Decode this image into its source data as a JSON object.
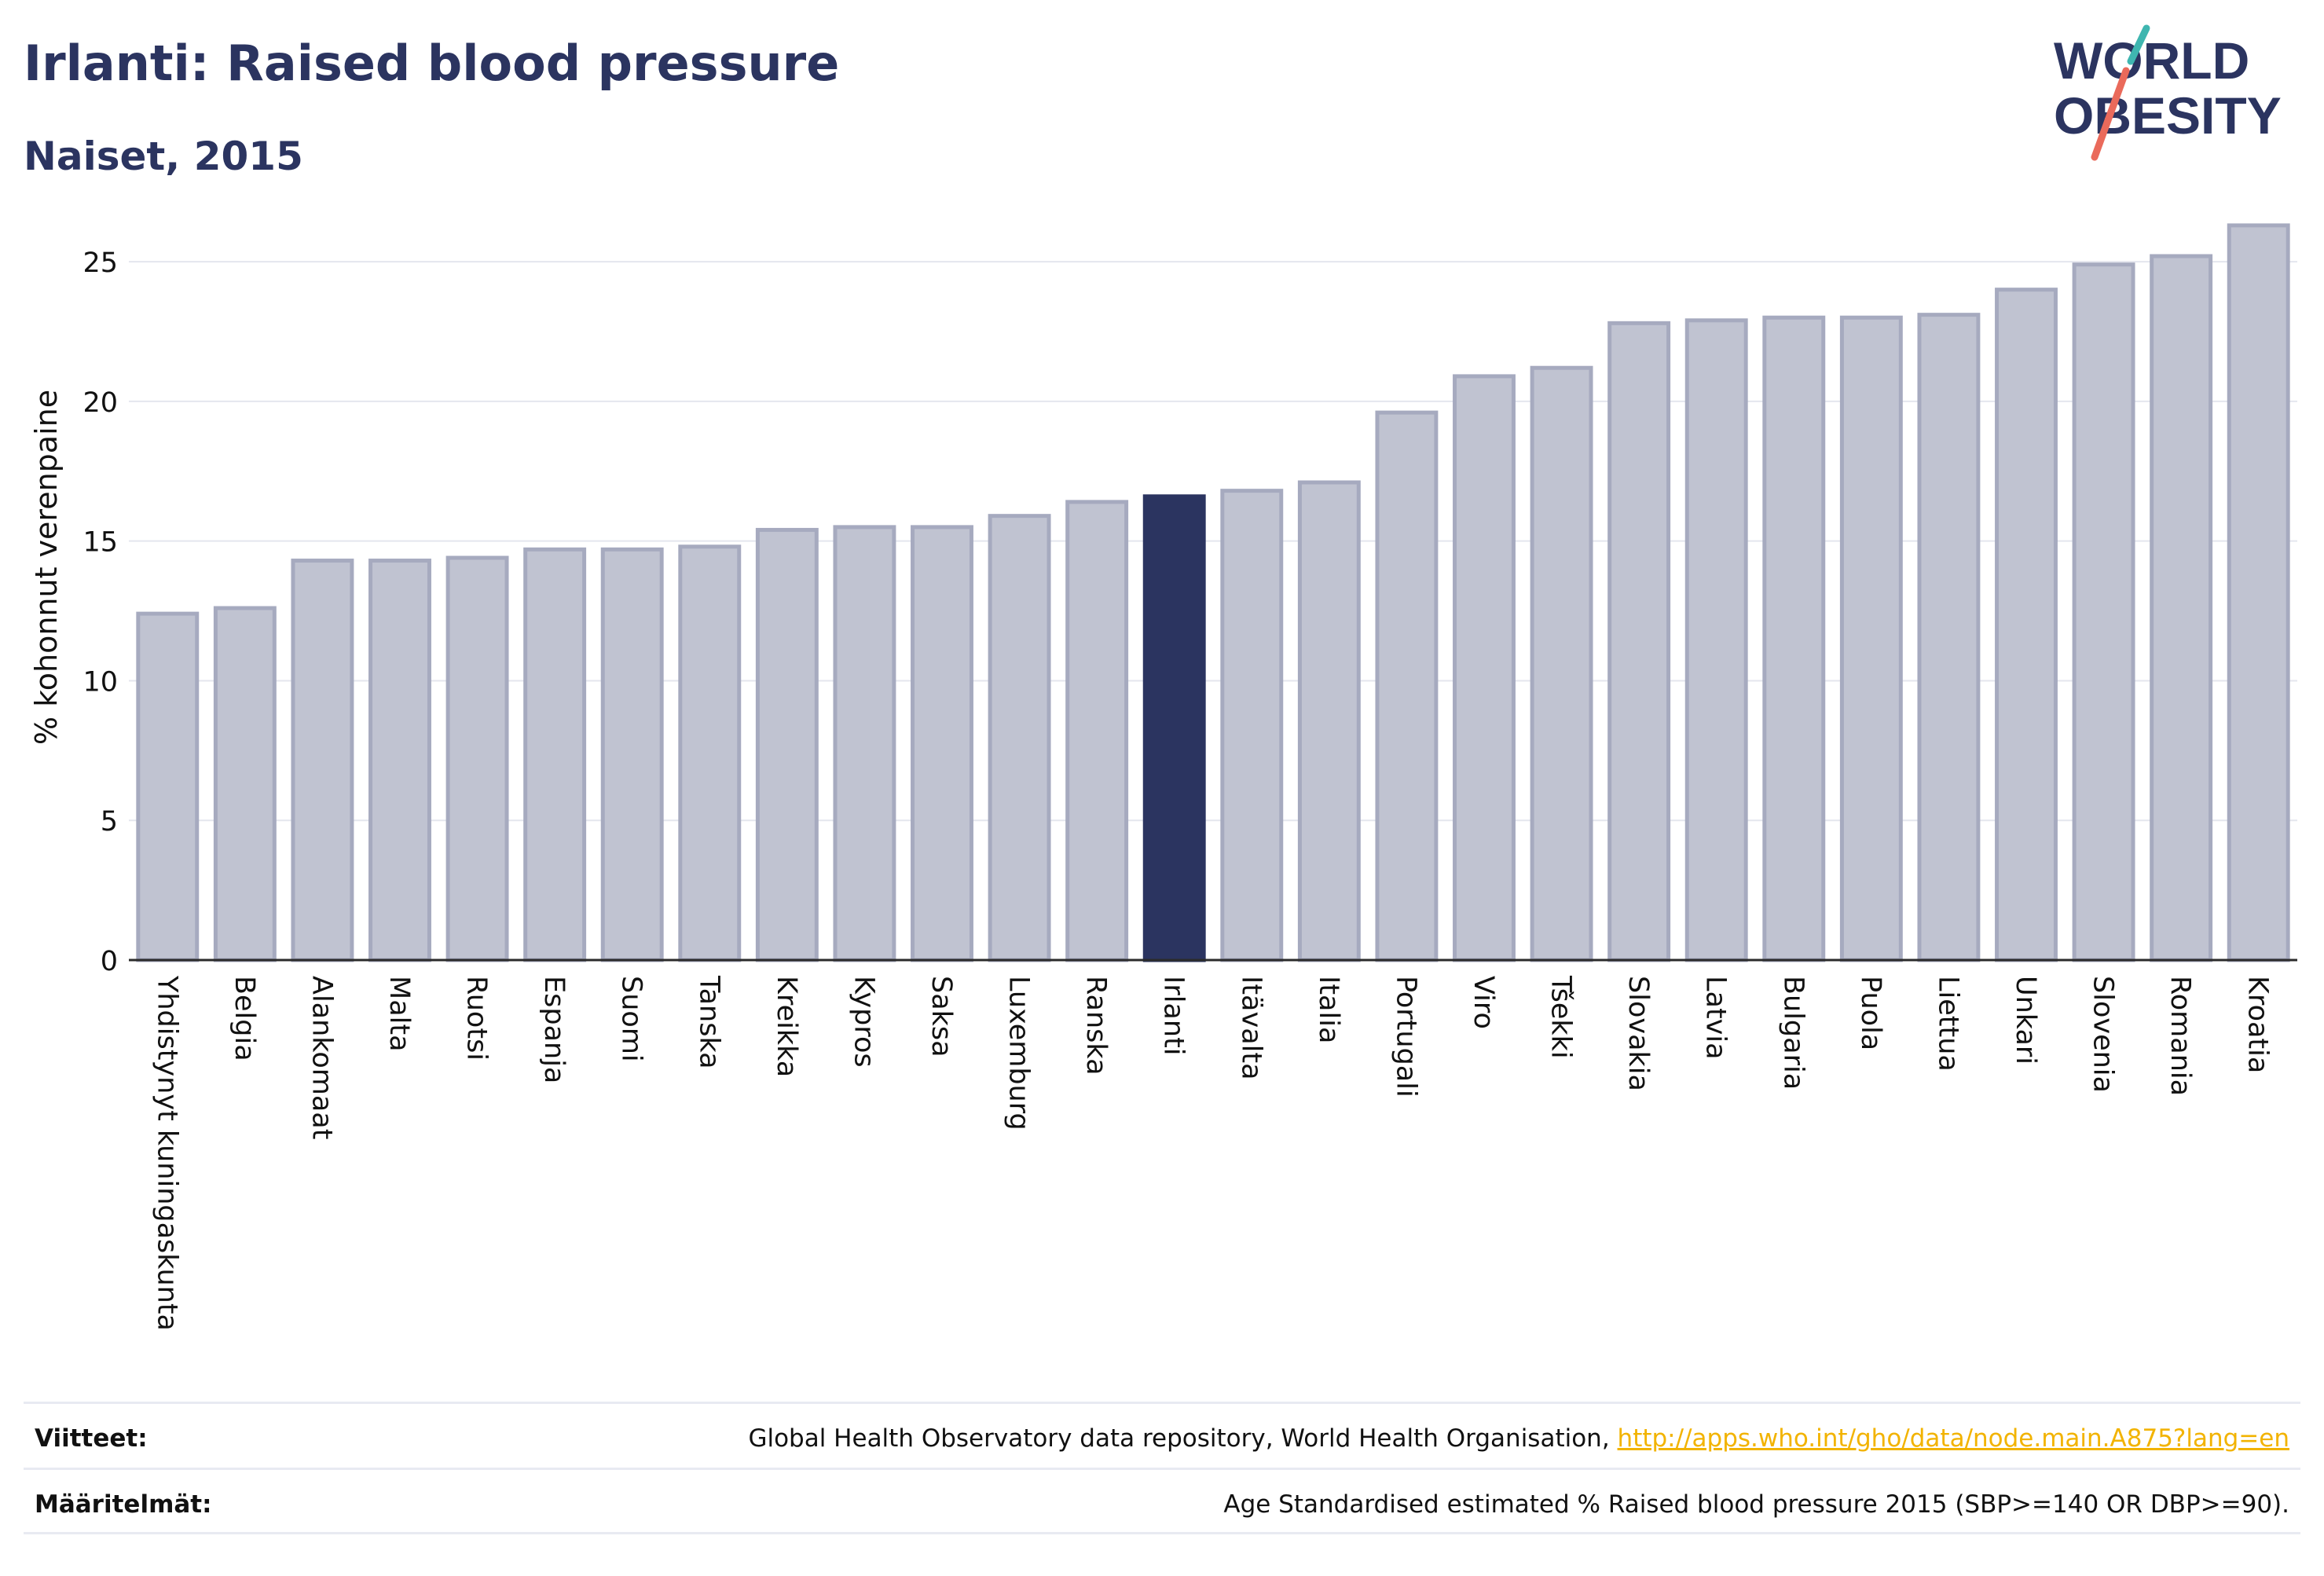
{
  "header": {
    "title": "Irlanti: Raised blood pressure",
    "subtitle": "Naiset, 2015",
    "logo_text": [
      "WORLD",
      "OBESITY"
    ]
  },
  "colors": {
    "bar_default": "#c0c3d1",
    "bar_default_stroke": "#a6aabf",
    "bar_highlight": "#2b3460",
    "text": "#2b3460",
    "logo_slash_teal": "#3fb6b0",
    "logo_slash_coral": "#ea6a5b",
    "link": "#f2b300"
  },
  "chart_data": {
    "type": "bar",
    "ylabel": "% kohonnut verenpaine",
    "ylim": [
      0,
      27
    ],
    "yticks": [
      0,
      5,
      10,
      15,
      20,
      25
    ],
    "grid": true,
    "highlight": "Irlanti",
    "categories": [
      "Yhdistynyt kuningaskunta",
      "Belgia",
      "Alankomaat",
      "Malta",
      "Ruotsi",
      "Espanja",
      "Suomi",
      "Tanska",
      "Kreikka",
      "Kypros",
      "Saksa",
      "Luxemburg",
      "Ranska",
      "Irlanti",
      "Itävalta",
      "Italia",
      "Portugali",
      "Viro",
      "Tšekki",
      "Slovakia",
      "Latvia",
      "Bulgaria",
      "Puola",
      "Liettua",
      "Unkari",
      "Slovenia",
      "Romania",
      "Kroatia"
    ],
    "values": [
      12.4,
      12.6,
      14.3,
      14.3,
      14.4,
      14.7,
      14.7,
      14.8,
      15.4,
      15.5,
      15.5,
      15.9,
      16.4,
      16.6,
      16.8,
      17.1,
      19.6,
      20.9,
      21.2,
      22.8,
      22.9,
      23.0,
      23.0,
      23.1,
      24.0,
      24.9,
      25.2,
      26.3
    ]
  },
  "footer": {
    "sources_label": "Viitteet:",
    "sources_text": "Global Health Observatory data repository, World Health Organisation,",
    "sources_link": "http://apps.who.int/gho/data/node.main.A875?lang=en",
    "definitions_label": "Määritelmät:",
    "definitions_text": "Age Standardised estimated % Raised blood pressure 2015 (SBP>=140 OR DBP>=90)."
  }
}
